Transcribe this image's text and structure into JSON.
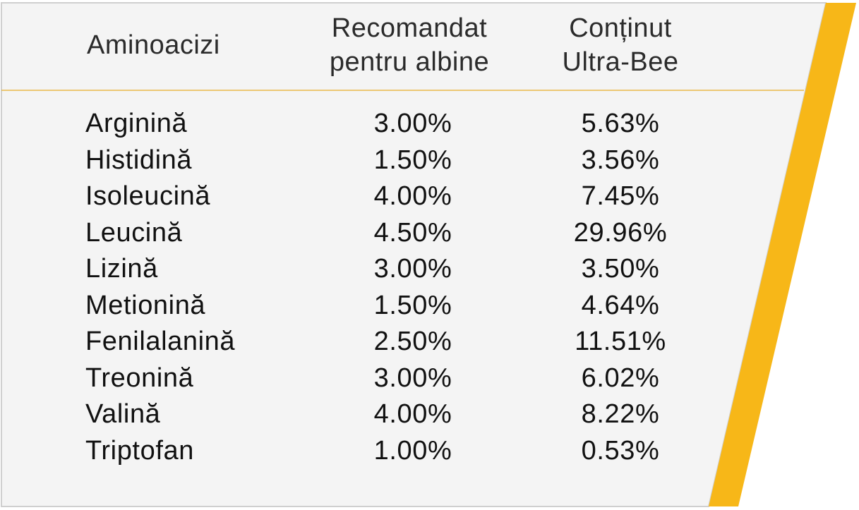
{
  "colors": {
    "panel": "#f4f4f4",
    "border": "#cfcfcf",
    "accent": "#f7b718",
    "divider": "#e9b84a"
  },
  "header": {
    "col1": "Aminoacizi",
    "col2_line1": "Recomandat",
    "col2_line2": "pentru albine",
    "col3_line1": "Conținut",
    "col3_line2": "Ultra-Bee"
  },
  "rows": [
    {
      "name": "Arginină",
      "recommended": "3.00%",
      "content": "5.63%"
    },
    {
      "name": "Histidină",
      "recommended": "1.50%",
      "content": "3.56%"
    },
    {
      "name": "Isoleucină",
      "recommended": "4.00%",
      "content": "7.45%"
    },
    {
      "name": "Leucină",
      "recommended": "4.50%",
      "content": "29.96%"
    },
    {
      "name": "Lizină",
      "recommended": "3.00%",
      "content": "3.50%"
    },
    {
      "name": "Metionină",
      "recommended": "1.50%",
      "content": "4.64%"
    },
    {
      "name": "Fenilalanină",
      "recommended": "2.50%",
      "content": "11.51%"
    },
    {
      "name": "Treonină",
      "recommended": "3.00%",
      "content": "6.02%"
    },
    {
      "name": "Valină",
      "recommended": "4.00%",
      "content": "8.22%"
    },
    {
      "name": "Triptofan",
      "recommended": "1.00%",
      "content": "0.53%"
    }
  ]
}
